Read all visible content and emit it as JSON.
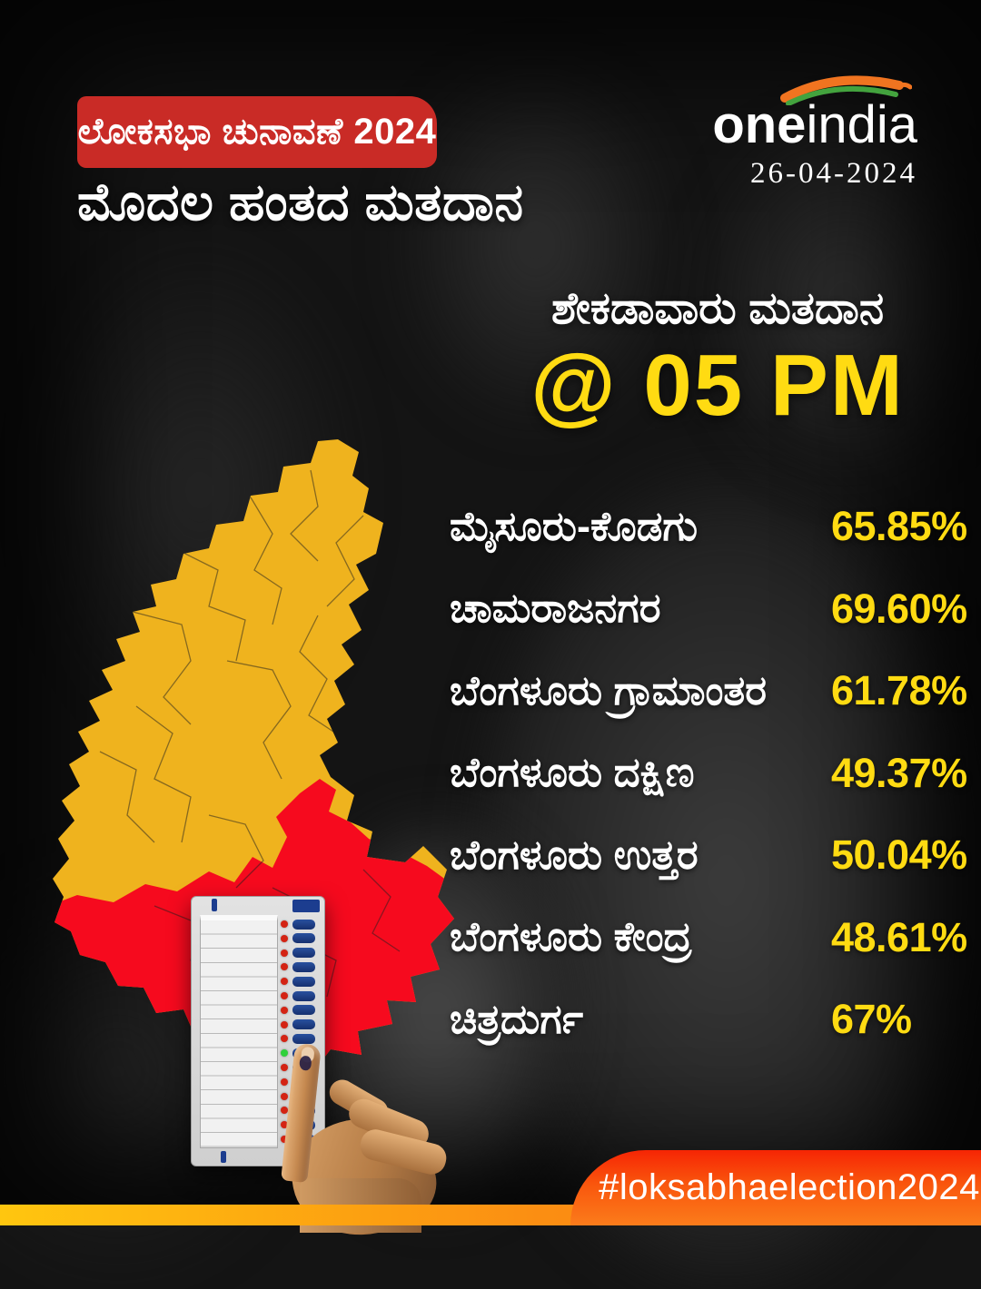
{
  "header": {
    "badge": "ಲೋಕಸಭಾ ಚುನಾವಣೆ 2024",
    "title": "ಮೊದಲ ಹಂತದ ಮತದಾನ"
  },
  "brand": {
    "one": "one",
    "india": "india",
    "date": "26-04-2024"
  },
  "section": {
    "title": "ಶೇಕಡಾವಾರು ಮತದಾನ",
    "time": "@ 05 PM"
  },
  "results": {
    "rows": [
      {
        "label": "ಮೈಸೂರು-ಕೊಡಗು",
        "value": "65.85%"
      },
      {
        "label": "ಚಾಮರಾಜನಗರ",
        "value": "69.60%"
      },
      {
        "label": "ಬೆಂಗಳೂರು ಗ್ರಾಮಾಂತರ",
        "value": "61.78%"
      },
      {
        "label": "ಬೆಂಗಳೂರು ದಕ್ಷಿಣ",
        "value": "49.37%"
      },
      {
        "label": "ಬೆಂಗಳೂರು ಉತ್ತರ",
        "value": "50.04%"
      },
      {
        "label": "ಬೆಂಗಳೂರು ಕೇಂದ್ರ",
        "value": "48.61%"
      },
      {
        "label": "ಚಿತ್ರದುರ್ಗ",
        "value": "67%"
      }
    ]
  },
  "footer": {
    "hashtag": "#loksabhaelection2024"
  },
  "icons": {
    "brand_swoosh": "tricolor-swoosh-icon",
    "map": "karnataka-constituency-map",
    "evm": "evm-voting-machine-illustration",
    "hand": "voter-finger-pressing-button"
  },
  "colors": {
    "badge_red": "#c92b26",
    "accent_yellow": "#ffdb12",
    "map_yellow": "#efb31e",
    "map_red": "#f60a1e",
    "footer_red": "#f62504",
    "footer_orange": "#fb7c1b",
    "strip_yellow": "#ffc60f",
    "swoosh_orange": "#f07420",
    "swoosh_green": "#43a33e"
  },
  "chart_data": {
    "type": "table",
    "title": "ಶೇಕಡಾವಾರು ಮತದಾನ @ 05 PM",
    "subtitle": "ಮೊದಲ ಹಂತದ ಮತದಾನ — ಲೋಕಸಭಾ ಚುನಾವಣೆ 2024 (26-04-2024)",
    "columns": [
      "constituency",
      "turnout_percent"
    ],
    "categories": [
      "ಮೈಸೂರು-ಕೊಡಗು",
      "ಚಾಮರಾಜನಗರ",
      "ಬೆಂಗಳೂರು ಗ್ರಾಮಾಂತರ",
      "ಬೆಂಗಳೂರು ದಕ್ಷಿಣ",
      "ಬೆಂಗಳೂರು ಉತ್ತರ",
      "ಬೆಂಗಳೂರು ಕೇಂದ್ರ",
      "ಚಿತ್ರದುರ್ಗ"
    ],
    "values": [
      65.85,
      69.6,
      61.78,
      49.37,
      50.04,
      48.61,
      67
    ]
  }
}
